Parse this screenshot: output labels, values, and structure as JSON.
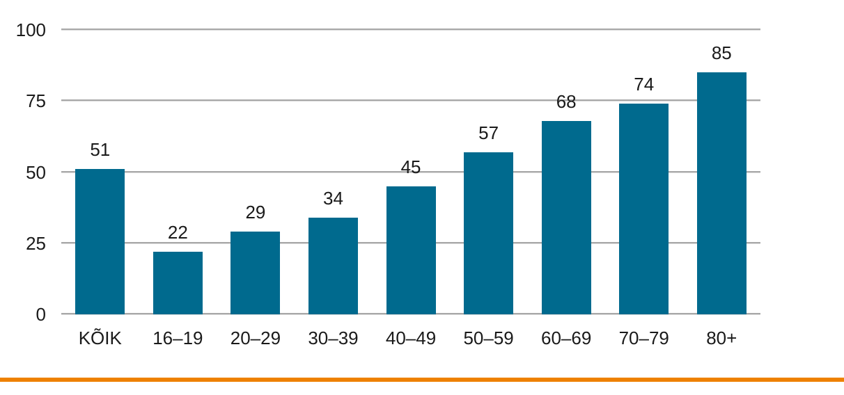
{
  "page": {
    "background_color": "#ffffff",
    "footer_rule_color": "#ee8100"
  },
  "chart_data": {
    "type": "bar",
    "title": "",
    "xlabel": "",
    "ylabel": "",
    "categories": [
      "KÕIK",
      "16–19",
      "20–29",
      "30–39",
      "40–49",
      "50–59",
      "60–69",
      "70–79",
      "80+"
    ],
    "values": [
      51,
      22,
      29,
      34,
      45,
      57,
      68,
      74,
      85
    ],
    "value_labels": [
      "51",
      "22",
      "29",
      "34",
      "45",
      "57",
      "68",
      "74",
      "85"
    ],
    "ylim": [
      0,
      100
    ],
    "yticks": [
      0,
      25,
      50,
      75,
      100
    ],
    "grid": true,
    "legend": "none",
    "bar_color": "#006a8e",
    "gridline_color": "#a8a8a8",
    "text_color": "#1a1a1a"
  }
}
